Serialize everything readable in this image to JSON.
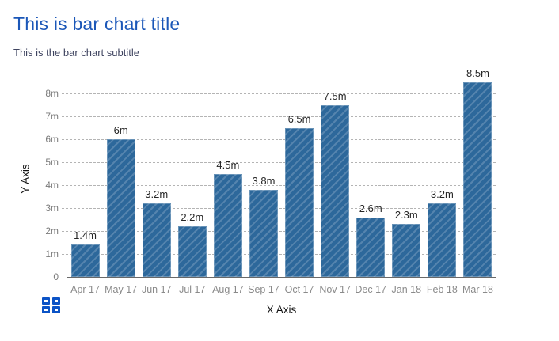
{
  "chart_data": {
    "type": "bar",
    "title": "This is bar chart title",
    "subtitle": "This is the bar chart subtitle",
    "xlabel": "X Axis",
    "ylabel": "Y Axis",
    "categories": [
      "Apr 17",
      "May 17",
      "Jun 17",
      "Jul 17",
      "Aug 17",
      "Sep 17",
      "Oct 17",
      "Nov 17",
      "Dec 17",
      "Jan 18",
      "Feb 18",
      "Mar 18"
    ],
    "values": [
      1.4,
      6,
      3.2,
      2.2,
      4.5,
      3.8,
      6.5,
      7.5,
      2.6,
      2.3,
      3.2,
      8.5
    ],
    "value_labels": [
      "1.4m",
      "6m",
      "3.2m",
      "2.2m",
      "4.5m",
      "3.8m",
      "6.5m",
      "7.5m",
      "2.6m",
      "2.3m",
      "3.2m",
      "8.5m"
    ],
    "yticks": [
      {
        "value": 0,
        "label": "0"
      },
      {
        "value": 1,
        "label": "1m"
      },
      {
        "value": 2,
        "label": "2m"
      },
      {
        "value": 3,
        "label": "3m"
      },
      {
        "value": 4,
        "label": "4m"
      },
      {
        "value": 5,
        "label": "5m"
      },
      {
        "value": 6,
        "label": "6m"
      },
      {
        "value": 7,
        "label": "7m"
      },
      {
        "value": 8,
        "label": "8m"
      }
    ],
    "ylim": [
      0,
      8.52
    ],
    "grid": "horizontal-dashed",
    "legend": "none",
    "bar_pattern": "diagonal-backslash-hatch"
  },
  "icons": {
    "chart_menu": "grid-of-four-squares-icon"
  },
  "colors": {
    "title_blue": "#1b57b8",
    "subtitle_color": "#3f4460",
    "bar_fill": "#2d689b",
    "bar_stripe": "#5584ae",
    "icon_blue": "#0b53c6",
    "grid_color": "#b4b4b4",
    "axis_line": "#696969",
    "ytick_color": "#7b7b7b",
    "xtick_color": "#8a8a8a",
    "value_color": "#262626",
    "axis_title_color": "#111111"
  }
}
